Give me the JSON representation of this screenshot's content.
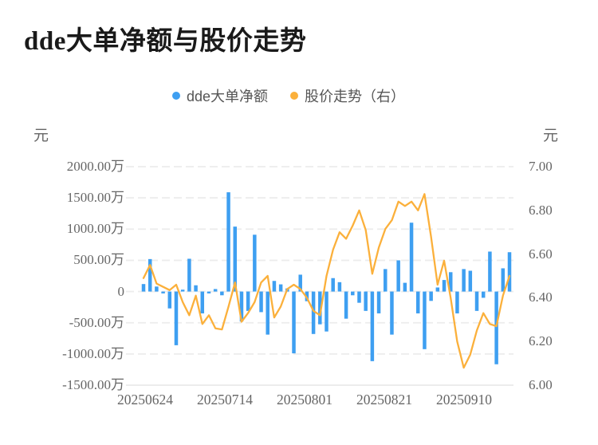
{
  "title": "dde大单净额与股价走势",
  "chart_data": {
    "type": "combo",
    "categories": [
      "20250624",
      "20250625",
      "20250626",
      "20250627",
      "20250630",
      "20250701",
      "20250702",
      "20250703",
      "20250704",
      "20250707",
      "20250708",
      "20250709",
      "20250710",
      "20250711",
      "20250714",
      "20250715",
      "20250716",
      "20250717",
      "20250718",
      "20250721",
      "20250722",
      "20250723",
      "20250724",
      "20250725",
      "20250728",
      "20250729",
      "20250730",
      "20250731",
      "20250801",
      "20250804",
      "20250805",
      "20250806",
      "20250807",
      "20250808",
      "20250811",
      "20250812",
      "20250813",
      "20250814",
      "20250815",
      "20250818",
      "20250819",
      "20250820",
      "20250821",
      "20250822",
      "20250825",
      "20250826",
      "20250827",
      "20250828",
      "20250829",
      "20250901",
      "20250902",
      "20250903",
      "20250904",
      "20250905",
      "20250908",
      "20250909",
      "20250910"
    ],
    "series": [
      {
        "name": "dde大单净额",
        "type": "bar",
        "axis": "left",
        "color": "#3E9FF1",
        "values_unit": "万元",
        "values": [
          120,
          520,
          80,
          -30,
          -270,
          -860,
          30,
          525,
          100,
          -350,
          -30,
          40,
          -60,
          1590,
          1040,
          -480,
          -310,
          910,
          -330,
          -690,
          170,
          115,
          50,
          -990,
          270,
          -155,
          -680,
          -525,
          -640,
          215,
          150,
          -435,
          -60,
          -180,
          -310,
          -1115,
          -350,
          360,
          -690,
          500,
          140,
          1103,
          -350,
          -923,
          -150,
          65,
          185,
          310,
          -350,
          360,
          333,
          -310,
          -100,
          640,
          -1165,
          372,
          630
        ]
      },
      {
        "name": "股价走势（右）",
        "type": "line",
        "axis": "right",
        "color": "#FBB03B",
        "values_unit": "元",
        "values": [
          6.49,
          6.55,
          6.465,
          6.45,
          6.435,
          6.46,
          6.38,
          6.32,
          6.41,
          6.28,
          6.32,
          6.26,
          6.255,
          6.36,
          6.47,
          6.29,
          6.33,
          6.38,
          6.47,
          6.5,
          6.31,
          6.36,
          6.44,
          6.46,
          6.44,
          6.4,
          6.34,
          6.32,
          6.5,
          6.62,
          6.7,
          6.67,
          6.73,
          6.8,
          6.71,
          6.51,
          6.63,
          6.715,
          6.755,
          6.84,
          6.82,
          6.84,
          6.8,
          6.875,
          6.68,
          6.46,
          6.57,
          6.4,
          6.2,
          6.08,
          6.14,
          6.25,
          6.33,
          6.28,
          6.27,
          6.41,
          6.5
        ]
      }
    ],
    "left_axis": {
      "unit": "元",
      "min_wan": -1500,
      "max_wan": 2000,
      "tick_labels": [
        "2000.00万",
        "1500.00万",
        "1000.00万",
        "500.00万",
        "0",
        "-500.00万",
        "-1000.00万",
        "-1500.00万"
      ],
      "tick_values_wan": [
        2000,
        1500,
        1000,
        500,
        0,
        -500,
        -1000,
        -1500
      ]
    },
    "right_axis": {
      "unit": "元",
      "min": 6.0,
      "max": 7.0,
      "tick_labels": [
        "7.00",
        "6.80",
        "6.60",
        "6.40",
        "6.20",
        "6.00"
      ],
      "tick_values": [
        7.0,
        6.8,
        6.6,
        6.4,
        6.2,
        6.0
      ]
    },
    "x_tick_labels": [
      "20250624",
      "20250714",
      "20250801",
      "20250821",
      "20250910"
    ],
    "grid": {
      "style": "dashed",
      "color": "#ECECEC",
      "baseline_color": "#E6E6E6",
      "legend_position": "top-center"
    }
  }
}
